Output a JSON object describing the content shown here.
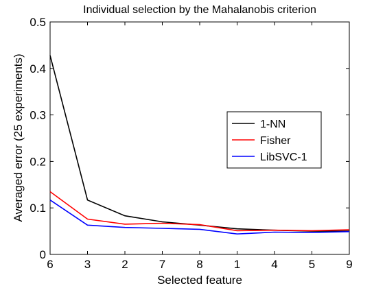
{
  "chart_data": {
    "type": "line",
    "title": "Individual selection by the Mahalanobis criterion",
    "xlabel": "Selected feature",
    "ylabel": "Averaged error (25 experiments)",
    "categories": [
      "6",
      "3",
      "2",
      "7",
      "8",
      "1",
      "4",
      "5",
      "9"
    ],
    "ylim": [
      0,
      0.5
    ],
    "yticks": [
      "0",
      "0.1",
      "0.2",
      "0.3",
      "0.4",
      "0.5"
    ],
    "grid": false,
    "legend_position": "center-right",
    "series": [
      {
        "name": "1-NN",
        "color": "#000000",
        "values": [
          0.428,
          0.117,
          0.083,
          0.07,
          0.063,
          0.055,
          0.052,
          0.05,
          0.05
        ]
      },
      {
        "name": "Fisher",
        "color": "#ff0000",
        "values": [
          0.135,
          0.076,
          0.065,
          0.067,
          0.064,
          0.051,
          0.052,
          0.051,
          0.053
        ]
      },
      {
        "name": "LibSVC-1",
        "color": "#0000ff",
        "values": [
          0.117,
          0.063,
          0.058,
          0.056,
          0.054,
          0.044,
          0.048,
          0.047,
          0.049
        ]
      }
    ]
  }
}
